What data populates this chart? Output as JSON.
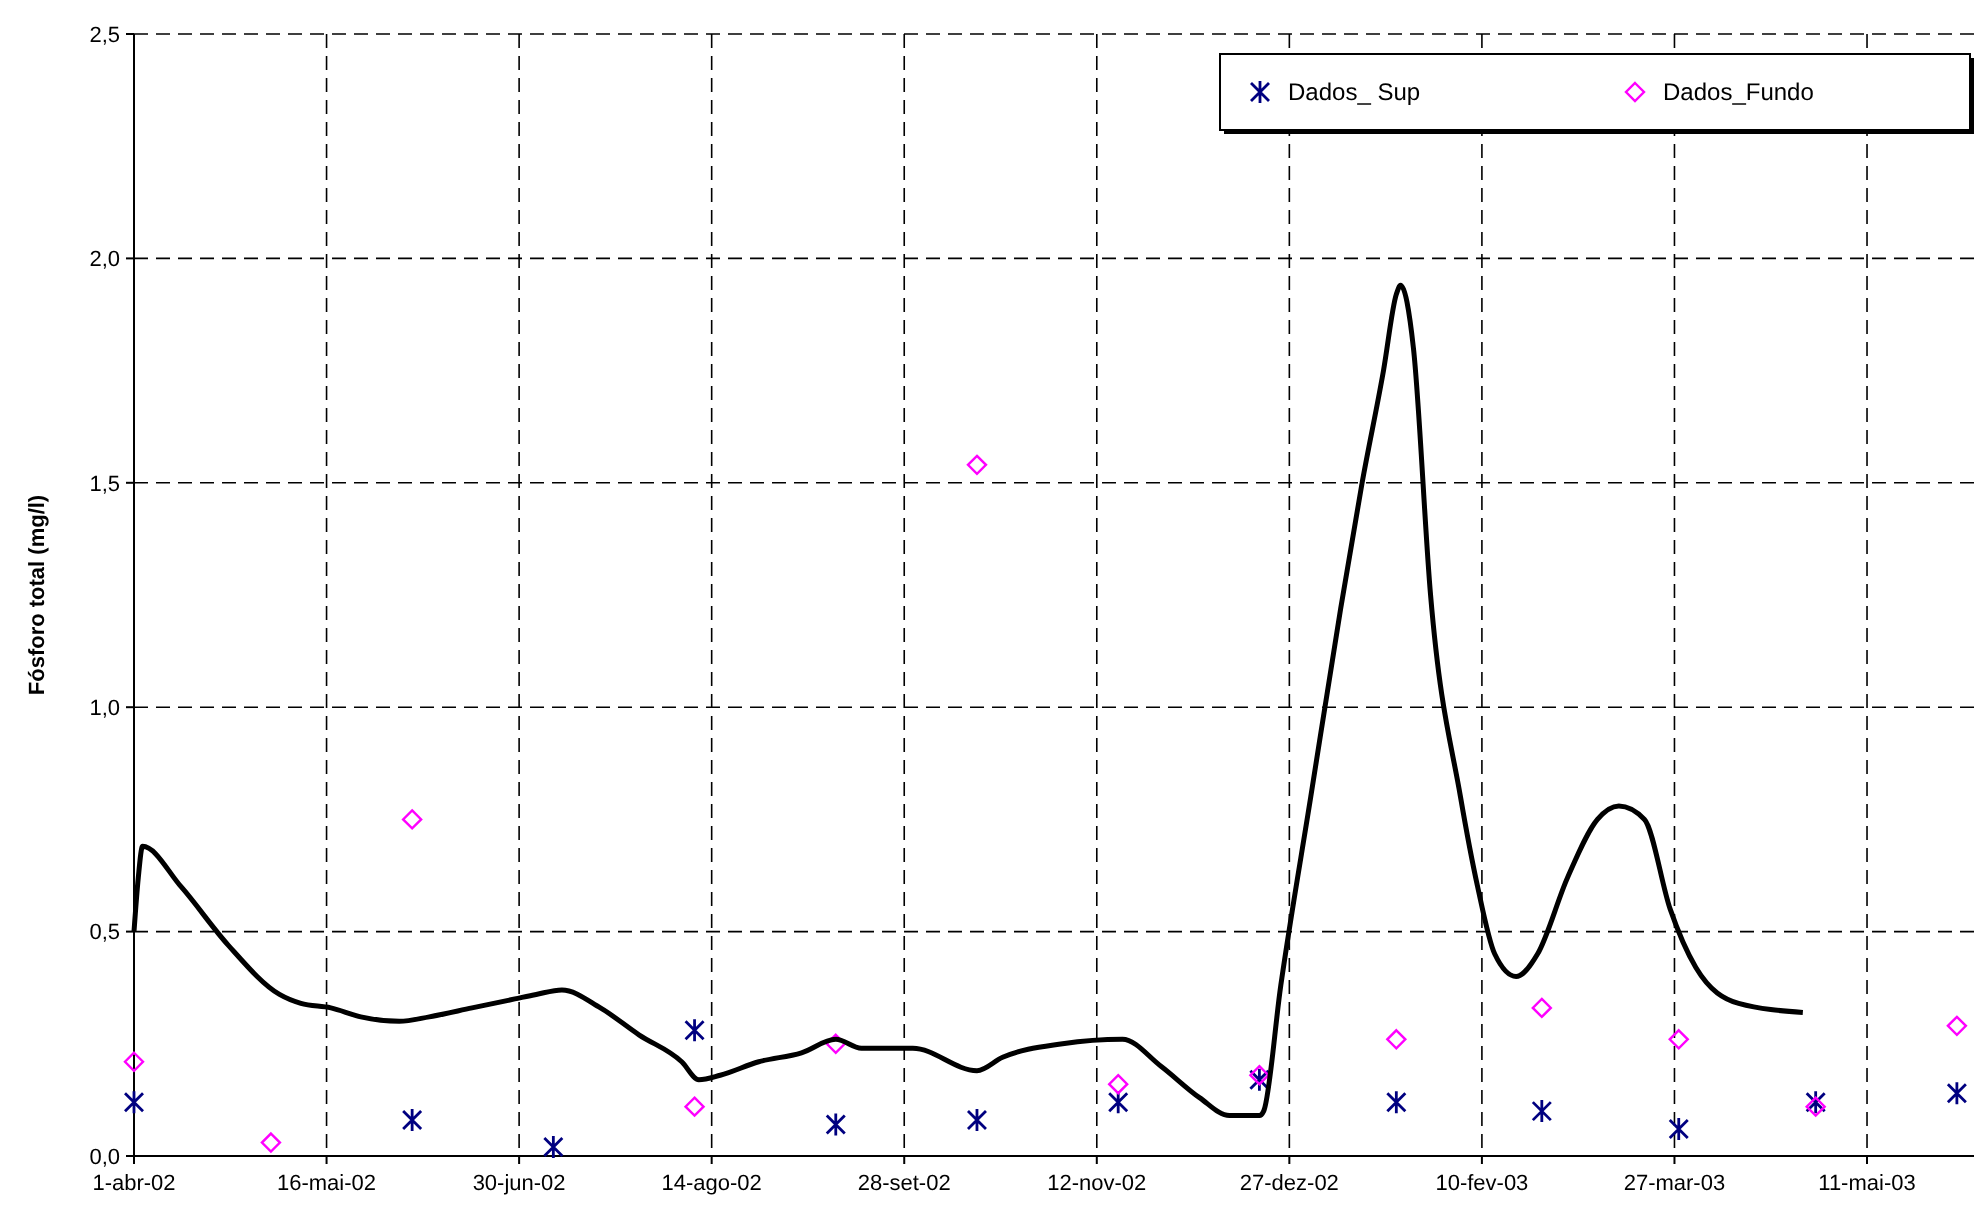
{
  "chart_data": {
    "type": "scatter",
    "ylabel": "Fósforo total (mg/l)",
    "grid": true,
    "legend": "top right",
    "xlim": [
      "2002-04-01",
      "2003-06-05"
    ],
    "xticks": [
      {
        "value": "2002-04-01",
        "label": "1-abr-02"
      },
      {
        "value": "2002-05-16",
        "label": "16-mai-02"
      },
      {
        "value": "2002-06-30",
        "label": "30-jun-02"
      },
      {
        "value": "2002-08-14",
        "label": "14-ago-02"
      },
      {
        "value": "2002-09-28",
        "label": "28-set-02"
      },
      {
        "value": "2002-11-12",
        "label": "12-nov-02"
      },
      {
        "value": "2002-12-27",
        "label": "27-dez-02"
      },
      {
        "value": "2003-02-10",
        "label": "10-fev-03"
      },
      {
        "value": "2003-03-27",
        "label": "27-mar-03"
      },
      {
        "value": "2003-05-11",
        "label": "11-mai-03"
      }
    ],
    "ylim": [
      0,
      2.5
    ],
    "yticks": [
      {
        "value": 0,
        "label": "0,0"
      },
      {
        "value": 0.5,
        "label": "0,5"
      },
      {
        "value": 1,
        "label": "1,0"
      },
      {
        "value": 1.5,
        "label": "1,5"
      },
      {
        "value": 2,
        "label": "2,0"
      },
      {
        "value": 2.5,
        "label": "2,5"
      }
    ],
    "series": [
      {
        "name": "Dados_ Sup",
        "marker": "cross",
        "color": "#000080",
        "x": [
          "2002-04-01",
          "2002-06-05",
          "2002-07-08",
          "2002-08-10",
          "2002-09-12",
          "2002-10-15",
          "2002-11-17",
          "2002-12-20",
          "2003-01-21",
          "2003-02-24",
          "2003-03-28",
          "2003-04-29",
          "2003-06-01"
        ],
        "values": [
          0.12,
          0.08,
          0.02,
          0.28,
          0.07,
          0.08,
          0.12,
          0.17,
          0.12,
          0.1,
          0.06,
          0.12,
          0.14
        ]
      },
      {
        "name": "Dados_Fundo",
        "marker": "diamond",
        "color": "#ff00ff",
        "x": [
          "2002-04-01",
          "2002-05-03",
          "2002-06-05",
          "2002-08-10",
          "2002-09-12",
          "2002-10-15",
          "2002-11-17",
          "2002-12-20",
          "2003-01-21",
          "2003-02-24",
          "2003-03-28",
          "2003-04-29",
          "2003-06-01"
        ],
        "values": [
          0.21,
          0.03,
          0.75,
          0.11,
          0.25,
          1.54,
          0.16,
          0.18,
          0.26,
          0.33,
          0.26,
          0.11,
          0.29
        ]
      },
      {
        "type": "line",
        "marker": "none",
        "line_style": "solid",
        "color": "#000000",
        "x": [
          "2002-04-01",
          "2002-04-02",
          "2002-04-03",
          "2002-04-12",
          "2002-04-23",
          "2002-05-05",
          "2002-05-10",
          "2002-05-17",
          "2002-05-24",
          "2002-06-02",
          "2002-06-09",
          "2002-06-19",
          "2002-06-29",
          "2002-07-04",
          "2002-07-10",
          "2002-07-19",
          "2002-07-28",
          "2002-08-07",
          "2002-08-11",
          "2002-08-16",
          "2002-08-25",
          "2002-09-04",
          "2002-09-12",
          "2002-09-18",
          "2002-09-30",
          "2002-10-15",
          "2002-10-21",
          "2002-11-04",
          "2002-11-18",
          "2002-11-27",
          "2002-12-06",
          "2002-12-13",
          "2002-12-20",
          "2002-12-21",
          "2002-12-25",
          "2003-01-01",
          "2003-01-08",
          "2003-01-13",
          "2003-01-18",
          "2003-01-21",
          "2003-01-22",
          "2003-01-25",
          "2003-01-29",
          "2003-02-05",
          "2003-02-09",
          "2003-02-13",
          "2003-02-18",
          "2003-02-23",
          "2003-03-02",
          "2003-03-09",
          "2003-03-14",
          "2003-03-20",
          "2003-03-26",
          "2003-04-01",
          "2003-04-11",
          "2003-04-26"
        ],
        "values": [
          0.5,
          0.62,
          0.69,
          0.6,
          0.47,
          0.36,
          0.34,
          0.33,
          0.31,
          0.3,
          0.31,
          0.33,
          0.35,
          0.36,
          0.37,
          0.33,
          0.27,
          0.21,
          0.17,
          0.18,
          0.21,
          0.23,
          0.26,
          0.24,
          0.24,
          0.19,
          0.22,
          0.25,
          0.26,
          0.2,
          0.13,
          0.09,
          0.09,
          0.1,
          0.38,
          0.8,
          1.22,
          1.5,
          1.75,
          1.92,
          1.94,
          1.8,
          1.25,
          0.8,
          0.6,
          0.45,
          0.4,
          0.45,
          0.62,
          0.75,
          0.78,
          0.75,
          0.55,
          0.42,
          0.34,
          0.32
        ]
      }
    ]
  }
}
